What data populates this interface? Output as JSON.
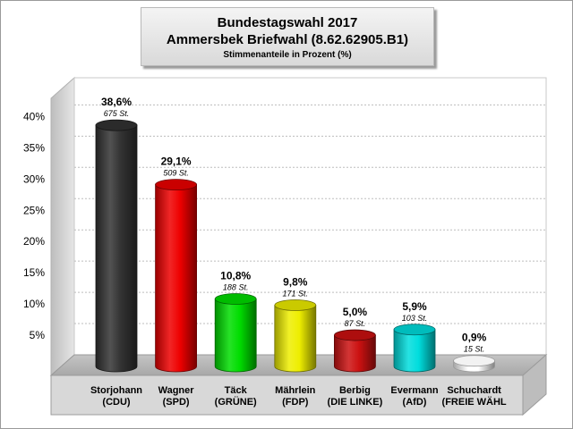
{
  "chart_data": {
    "type": "bar",
    "title": "Bundestagswahl 2017",
    "subtitle": "Ammersbek Briefwahl (8.62.62905.B1)",
    "ylabel": "Stimmenanteile in Prozent (%)",
    "ylim": [
      0,
      45
    ],
    "yticks": [
      "5%",
      "10%",
      "15%",
      "20%",
      "25%",
      "30%",
      "35%",
      "40%"
    ],
    "ytick_values": [
      5,
      10,
      15,
      20,
      25,
      30,
      35,
      40
    ],
    "grid": true,
    "categories": [
      {
        "name": "Storjohann",
        "party": "(CDU)"
      },
      {
        "name": "Wagner",
        "party": "(SPD)"
      },
      {
        "name": "Täck",
        "party": "(GRÜNE)"
      },
      {
        "name": "Mährlein",
        "party": "(FDP)"
      },
      {
        "name": "Berbig",
        "party": "(DIE LINKE)"
      },
      {
        "name": "Evermann",
        "party": "(AfD)"
      },
      {
        "name": "Schuchardt",
        "party": "(FREIE WÄHL"
      }
    ],
    "values": [
      38.6,
      29.1,
      10.8,
      9.8,
      5.0,
      5.9,
      0.9
    ],
    "value_labels": [
      "38,6%",
      "29,1%",
      "10,8%",
      "9,8%",
      "5,0%",
      "5,9%",
      "0,9%"
    ],
    "votes": [
      675,
      509,
      188,
      171,
      87,
      103,
      15
    ],
    "vote_labels": [
      "675 St.",
      "509 St.",
      "188 St.",
      "171 St.",
      "87 St.",
      "103 St.",
      "15 St."
    ],
    "colors": [
      "#333333",
      "#ee0000",
      "#00dd00",
      "#eeee00",
      "#cc1111",
      "#00dddd",
      "#ffffff"
    ]
  }
}
